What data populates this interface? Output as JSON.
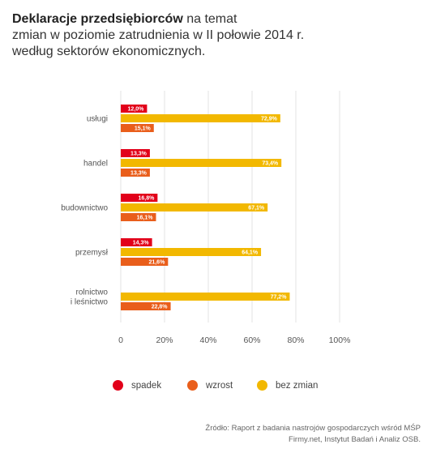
{
  "title": {
    "bold": "Deklaracje przedsiębiorców",
    "rest_line1": " na temat",
    "line2": "zmian w poziomie zatrudnienia w II połowie 2014 r.",
    "line3": "według sektorów ekonomicznych."
  },
  "chart_data": {
    "type": "bar",
    "orientation": "horizontal",
    "categories": [
      [
        "usługi"
      ],
      [
        "handel"
      ],
      [
        "budownictwo"
      ],
      [
        "przemysł"
      ],
      [
        "rolnictwo",
        "i leśnictwo"
      ]
    ],
    "series": [
      {
        "name": "spadek",
        "color": "#e2001a",
        "values": [
          12.0,
          13.3,
          16.8,
          14.3,
          null
        ],
        "labels": [
          "12,0%",
          "13,3%",
          "16,8%",
          "14,3%",
          null
        ]
      },
      {
        "name": "bez zmian",
        "color": "#f2b800",
        "values": [
          72.9,
          73.4,
          67.1,
          64.1,
          77.2
        ],
        "labels": [
          "72,9%",
          "73,4%",
          "67,1%",
          "64,1%",
          "77,2%"
        ]
      },
      {
        "name": "wzrost",
        "color": "#e95e1b",
        "values": [
          15.1,
          13.3,
          16.1,
          21.6,
          22.8
        ],
        "labels": [
          "15,1%",
          "13,3%",
          "16,1%",
          "21,6%",
          "22,8%"
        ]
      }
    ],
    "xlim": [
      0,
      100
    ],
    "xticks": [
      "0",
      "20%",
      "40%",
      "60%",
      "80%",
      "100%"
    ],
    "grid": true
  },
  "legend": {
    "items": [
      {
        "label": "spadek",
        "color": "#e2001a"
      },
      {
        "label": "wzrost",
        "color": "#e95e1b"
      },
      {
        "label": "bez zmian",
        "color": "#f2b800"
      }
    ]
  },
  "source": {
    "line1": "Źródło: Raport z badania nastrojów gospodarczych wśród MŚP",
    "line2": "Firmy.net, Instytut Badań i Analiz OSB."
  }
}
